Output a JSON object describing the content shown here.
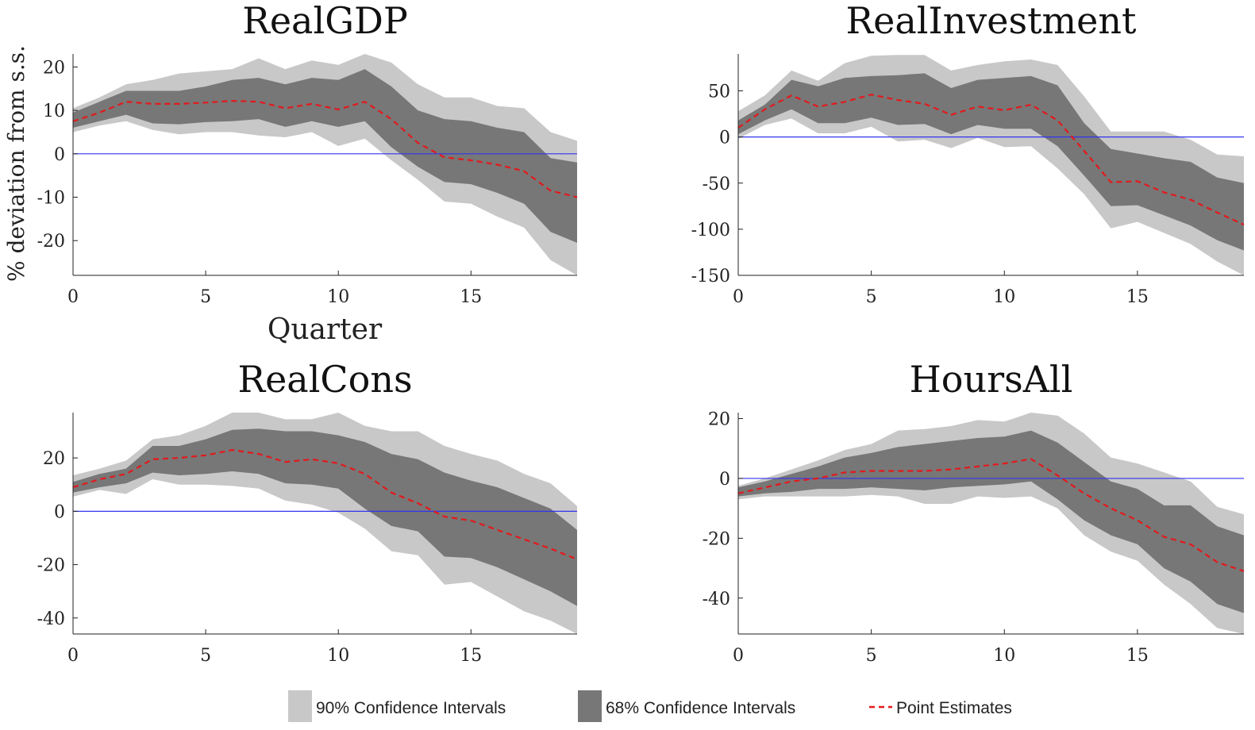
{
  "figure": {
    "shared_ylabel": "% deviation from s.s.",
    "shared_xlabel": "Quarter"
  },
  "legend": {
    "placement": "bottom",
    "items": [
      {
        "label": "90% Confidence Intervals",
        "color": "#c8c8c8"
      },
      {
        "label": "68% Confidence Intervals",
        "color": "#777777"
      },
      {
        "label": "Point Estimates",
        "color": "#e3191c"
      }
    ]
  },
  "colors": {
    "ci90": "#c8c8c8",
    "ci68": "#777777",
    "point": "#e3191c",
    "zero_line": "#3333ee"
  },
  "chart_data": [
    {
      "type": "area",
      "title": "RealGDP",
      "xlim": [
        0,
        19
      ],
      "ylim": [
        -28,
        23
      ],
      "xticks": [
        0,
        5,
        10,
        15
      ],
      "yticks": [
        20,
        10,
        0,
        -10,
        -20
      ],
      "x": [
        0,
        1,
        2,
        3,
        4,
        5,
        6,
        7,
        8,
        9,
        10,
        11,
        12,
        13,
        14,
        15,
        16,
        17,
        18,
        19
      ],
      "series": [
        {
          "name": "Point Estimates",
          "values": [
            7.5,
            9.5,
            12,
            11.5,
            11.5,
            11.8,
            12.2,
            12,
            10.5,
            11.5,
            10.2,
            12,
            8,
            2.5,
            -0.8,
            -1.5,
            -2.5,
            -4,
            -8.5,
            -10
          ]
        },
        {
          "name": "68% lower",
          "values": [
            6,
            7.5,
            9,
            7,
            6.8,
            7.3,
            7.5,
            8,
            6.2,
            7.5,
            6.2,
            7.5,
            1.5,
            -3,
            -6.5,
            -7,
            -9,
            -11.5,
            -18,
            -20.5
          ]
        },
        {
          "name": "68% upper",
          "values": [
            9.5,
            12,
            14.5,
            14.5,
            14.5,
            15.5,
            17,
            17.5,
            16,
            17.5,
            17,
            19.5,
            15.5,
            10,
            8,
            7.5,
            6,
            5,
            -1,
            -2
          ]
        },
        {
          "name": "90% lower",
          "values": [
            5,
            6.5,
            7.5,
            5.5,
            4.5,
            5,
            5,
            4.2,
            3.8,
            5,
            1.8,
            3.5,
            -1.5,
            -6,
            -11,
            -11.5,
            -14.5,
            -17,
            -24.5,
            -28
          ]
        },
        {
          "name": "90% upper",
          "values": [
            10.5,
            13,
            16,
            17,
            18.5,
            19,
            19.5,
            22,
            19.5,
            21.5,
            20.5,
            23,
            21,
            16,
            13,
            13,
            11,
            10.5,
            5,
            3
          ]
        }
      ]
    },
    {
      "type": "area",
      "title": "RealInvestment",
      "xlim": [
        0,
        19
      ],
      "ylim": [
        -150,
        90
      ],
      "xticks": [
        0,
        5,
        10,
        15
      ],
      "yticks": [
        50,
        0,
        -50,
        -100,
        -150
      ],
      "x": [
        0,
        1,
        2,
        3,
        4,
        5,
        6,
        7,
        8,
        9,
        10,
        11,
        12,
        13,
        14,
        15,
        16,
        17,
        18,
        19
      ],
      "series": [
        {
          "name": "Point Estimates",
          "values": [
            10,
            30,
            45,
            33,
            38,
            46,
            40,
            36,
            24,
            33,
            29,
            35,
            18,
            -15,
            -49,
            -48,
            -60,
            -68,
            -82,
            -95
          ]
        },
        {
          "name": "68% lower",
          "values": [
            3,
            18,
            30,
            15,
            15,
            21,
            13,
            14,
            3,
            13,
            9,
            9,
            -10,
            -42,
            -75,
            -74,
            -85,
            -96,
            -112,
            -123
          ]
        },
        {
          "name": "68% upper",
          "values": [
            18,
            35,
            62,
            55,
            64,
            66,
            67,
            69,
            53,
            62,
            64,
            66,
            56,
            15,
            -13,
            -18,
            -23,
            -27,
            -44,
            -50
          ]
        },
        {
          "name": "90% lower",
          "values": [
            -2,
            13,
            20,
            4,
            4,
            11,
            -5,
            -3,
            -12,
            -1,
            -11,
            -10,
            -34,
            -62,
            -99,
            -92,
            -104,
            -116,
            -135,
            -150
          ]
        },
        {
          "name": "90% upper",
          "values": [
            28,
            45,
            72,
            61,
            80,
            88,
            89,
            89,
            72,
            78,
            82,
            84,
            78,
            44,
            6,
            6,
            6,
            -3,
            -19,
            -21
          ]
        }
      ]
    },
    {
      "type": "area",
      "title": "RealCons",
      "xlim": [
        0,
        19
      ],
      "ylim": [
        -46,
        37
      ],
      "xticks": [
        0,
        5,
        10,
        15
      ],
      "yticks": [
        20,
        0,
        -20,
        -40
      ],
      "x": [
        0,
        1,
        2,
        3,
        4,
        5,
        6,
        7,
        8,
        9,
        10,
        11,
        12,
        13,
        14,
        15,
        16,
        17,
        18,
        19
      ],
      "series": [
        {
          "name": "Point Estimates",
          "values": [
            9,
            12,
            14,
            19.5,
            20,
            21,
            23,
            21.5,
            18.5,
            19.5,
            18,
            14,
            7,
            3,
            -2,
            -3.5,
            -7,
            -10.5,
            -14,
            -18
          ]
        },
        {
          "name": "68% lower",
          "values": [
            7,
            9,
            10.5,
            14.5,
            13.5,
            14,
            15,
            14,
            10.5,
            10,
            8.5,
            1,
            -5.5,
            -7.5,
            -17,
            -17.5,
            -21,
            -25.5,
            -30,
            -35.5
          ]
        },
        {
          "name": "68% upper",
          "values": [
            11,
            14,
            16,
            24.5,
            24.5,
            27,
            30.5,
            31,
            30,
            30,
            28.5,
            26,
            21.5,
            19.5,
            14.5,
            11.5,
            9,
            5,
            1,
            -7
          ]
        },
        {
          "name": "90% lower",
          "values": [
            5.5,
            8,
            6.5,
            12,
            10,
            10,
            9.5,
            8.5,
            4,
            2.5,
            -0.5,
            -6.5,
            -15,
            -16.5,
            -27.5,
            -26.5,
            -32,
            -37.5,
            -41,
            -46
          ]
        },
        {
          "name": "90% upper",
          "values": [
            13.5,
            16,
            19,
            27,
            28.5,
            32,
            37,
            37,
            34.5,
            34.5,
            37,
            32,
            30,
            30,
            24.5,
            21.5,
            19,
            14,
            10.5,
            2
          ]
        }
      ]
    },
    {
      "type": "area",
      "title": "HoursAll",
      "xlim": [
        0,
        19
      ],
      "ylim": [
        -52,
        22
      ],
      "xticks": [
        0,
        5,
        10,
        15
      ],
      "yticks": [
        20,
        0,
        -20,
        -40
      ],
      "x": [
        0,
        1,
        2,
        3,
        4,
        5,
        6,
        7,
        8,
        9,
        10,
        11,
        12,
        13,
        14,
        15,
        16,
        17,
        18,
        19
      ],
      "series": [
        {
          "name": "Point Estimates",
          "values": [
            -5,
            -3,
            -1,
            0,
            2,
            2.5,
            2.5,
            2.5,
            3,
            4,
            5,
            6.5,
            1,
            -5,
            -10,
            -14,
            -19.5,
            -22,
            -28,
            -31
          ]
        },
        {
          "name": "68% lower",
          "values": [
            -6,
            -5,
            -4.5,
            -3.5,
            -3.5,
            -3,
            -3.5,
            -4,
            -3,
            -2.5,
            -2,
            -1,
            -7,
            -14,
            -19,
            -22,
            -30,
            -34.5,
            -42,
            -45
          ]
        },
        {
          "name": "68% upper",
          "values": [
            -3,
            -1,
            1.5,
            4,
            7,
            8.5,
            10.5,
            11.5,
            12.5,
            13.5,
            14,
            16,
            12,
            5.5,
            -1,
            -3.5,
            -9,
            -9,
            -16,
            -19
          ]
        },
        {
          "name": "90% lower",
          "values": [
            -7,
            -6,
            -6,
            -6,
            -6,
            -5.5,
            -6,
            -8.5,
            -8.5,
            -6,
            -6.5,
            -6,
            -10,
            -19,
            -24.5,
            -27.5,
            -35.5,
            -42,
            -50,
            -52
          ]
        },
        {
          "name": "90% upper",
          "values": [
            -2.5,
            0,
            3,
            6,
            9.5,
            11.5,
            16,
            16.5,
            17.5,
            19.5,
            19,
            22,
            21,
            15,
            7,
            5,
            2,
            -1,
            -9.5,
            -12
          ]
        }
      ]
    }
  ]
}
